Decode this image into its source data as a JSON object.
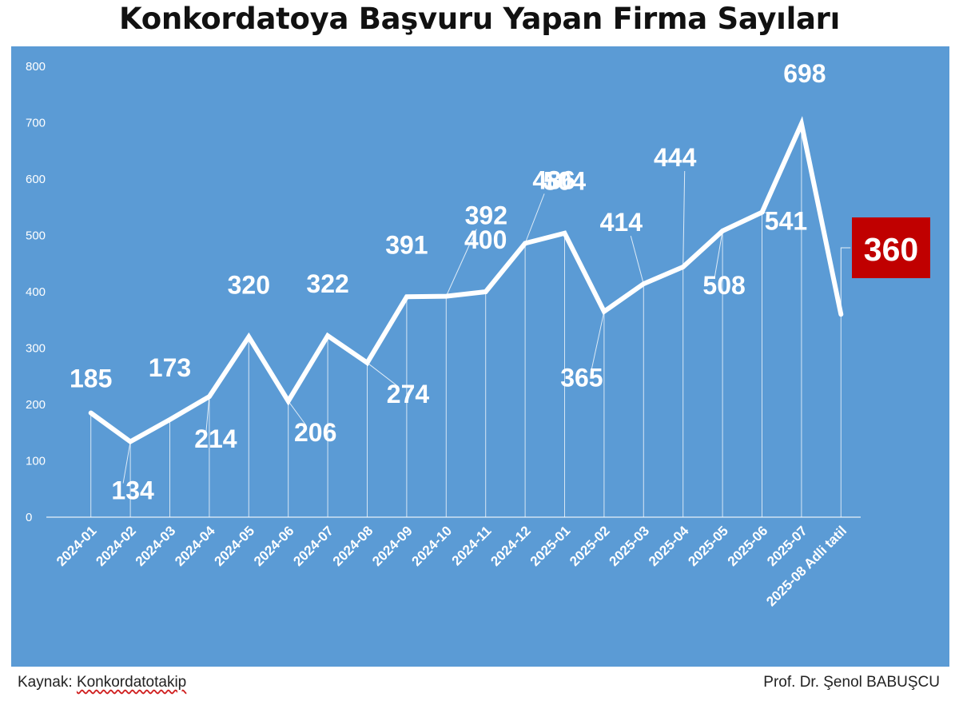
{
  "title": "Konkordatoya Başvuru Yapan Firma Sayıları",
  "footer": {
    "source_label": "Kaynak:",
    "source_name": "Konkordatotakip",
    "author": "Prof. Dr. Şenol BABUŞCU"
  },
  "colors": {
    "background": "#5b9bd5",
    "line": "#ffffff",
    "highlight_box": "#c00000"
  },
  "chart_data": {
    "type": "line",
    "title": "Konkordatoya Başvuru Yapan Firma Sayıları",
    "xlabel": "",
    "ylabel": "",
    "ylim": [
      0,
      800
    ],
    "yticks": [
      0,
      100,
      200,
      300,
      400,
      500,
      600,
      700,
      800
    ],
    "grid": false,
    "legend": "none",
    "categories": [
      "2024-01",
      "2024-02",
      "2024-03",
      "2024-04",
      "2024-05",
      "2024-06",
      "2024-07",
      "2024-08",
      "2024-09",
      "2024-10",
      "2024-11",
      "2024-12",
      "2025-01",
      "2025-02",
      "2025-03",
      "2025-04",
      "2025-05",
      "2025-06",
      "2025-07",
      "2025-08 Adli tatil"
    ],
    "values": [
      185,
      134,
      173,
      214,
      320,
      206,
      322,
      274,
      391,
      392,
      400,
      486,
      504,
      365,
      414,
      444,
      508,
      541,
      698,
      360
    ],
    "highlighted_label": "2025-08 Adli tatil"
  }
}
